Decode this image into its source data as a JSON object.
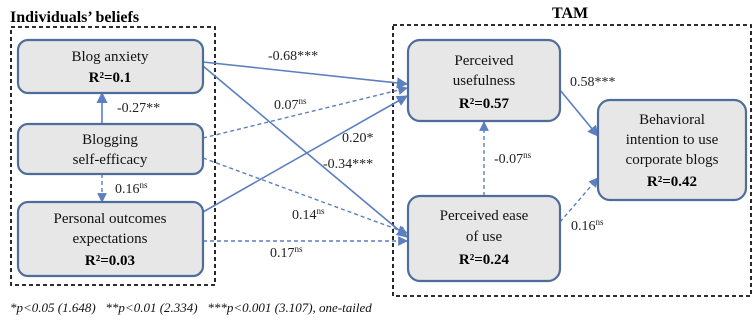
{
  "groups": {
    "individuals": "Individuals’ beliefs",
    "tam": "TAM"
  },
  "nodes": {
    "blog_anxiety": {
      "lines": [
        "Blog anxiety"
      ],
      "r2": "R²=0.1"
    },
    "self_efficacy": {
      "lines": [
        "Blogging",
        "self-efficacy"
      ],
      "r2": ""
    },
    "outcomes": {
      "lines": [
        "Personal outcomes",
        "expectations"
      ],
      "r2": "R²=0.03"
    },
    "usefulness": {
      "lines": [
        "Perceived",
        "usefulness"
      ],
      "r2": "R²=0.57"
    },
    "ease": {
      "lines": [
        "Perceived ease",
        "of use"
      ],
      "r2": "R²=0.24"
    },
    "intention": {
      "lines": [
        "Behavioral",
        "intention to use",
        "corporate blogs"
      ],
      "r2": "R²=0.42"
    }
  },
  "edges": {
    "anx_use": {
      "value": "-0.68***",
      "sup": ""
    },
    "se_use": {
      "value": "0.07",
      "sup": "ns"
    },
    "out_use": {
      "value": "0.20*",
      "sup": ""
    },
    "anx_ease": {
      "value": "-0.34***",
      "sup": ""
    },
    "se_ease": {
      "value": "0.14",
      "sup": "ns"
    },
    "out_ease": {
      "value": "0.17",
      "sup": "ns"
    },
    "se_anx": {
      "value": "-0.27**",
      "sup": ""
    },
    "se_out": {
      "value": "0.16",
      "sup": "ns"
    },
    "ease_use": {
      "value": "-0.07",
      "sup": "ns"
    },
    "use_int": {
      "value": "0.58***",
      "sup": ""
    },
    "ease_int": {
      "value": "0.16",
      "sup": "ns"
    }
  },
  "footnote": "*p<0.05 (1.648)   **p<0.01 (2.334)   ***p<0.001 (3.107), one-tailed",
  "colors": {
    "border": "#4f6d9b",
    "fill": "#e7e7e7",
    "arrow": "#5b7fbf"
  }
}
